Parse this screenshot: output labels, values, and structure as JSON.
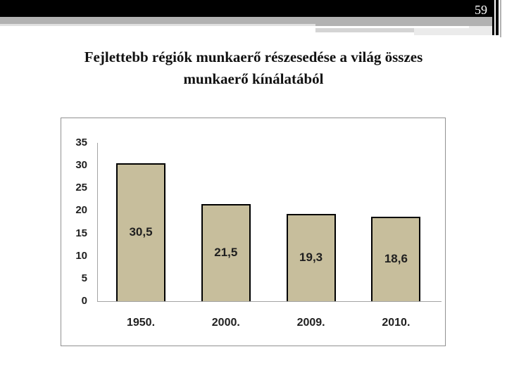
{
  "page_number": "59",
  "title": {
    "line1": "Fejlettebb régiók munkaerő részesedése a világ összes",
    "line2": "munkaerő kínálatából"
  },
  "chart_data": {
    "type": "bar",
    "title": "",
    "xlabel": "",
    "ylabel": "",
    "categories": [
      "1950.",
      "2000.",
      "2009.",
      "2010."
    ],
    "values": [
      30.5,
      21.5,
      19.3,
      18.6
    ],
    "value_labels": [
      "30,5",
      "21,5",
      "19,3",
      "18,6"
    ],
    "y_ticks": [
      0,
      5,
      10,
      15,
      20,
      25,
      30,
      35
    ],
    "ylim": [
      0,
      35
    ],
    "grid": false,
    "legend": "none",
    "bar_fill": "#c7be9c",
    "bar_border": "#000000"
  },
  "colors": {
    "header_black": "#000000",
    "header_gray": "#b2b2b2",
    "header_light": "#e0e0e0",
    "chart_border": "#919191",
    "axis_gray": "#a3a3a3",
    "text_dark": "#1f1f1f"
  }
}
